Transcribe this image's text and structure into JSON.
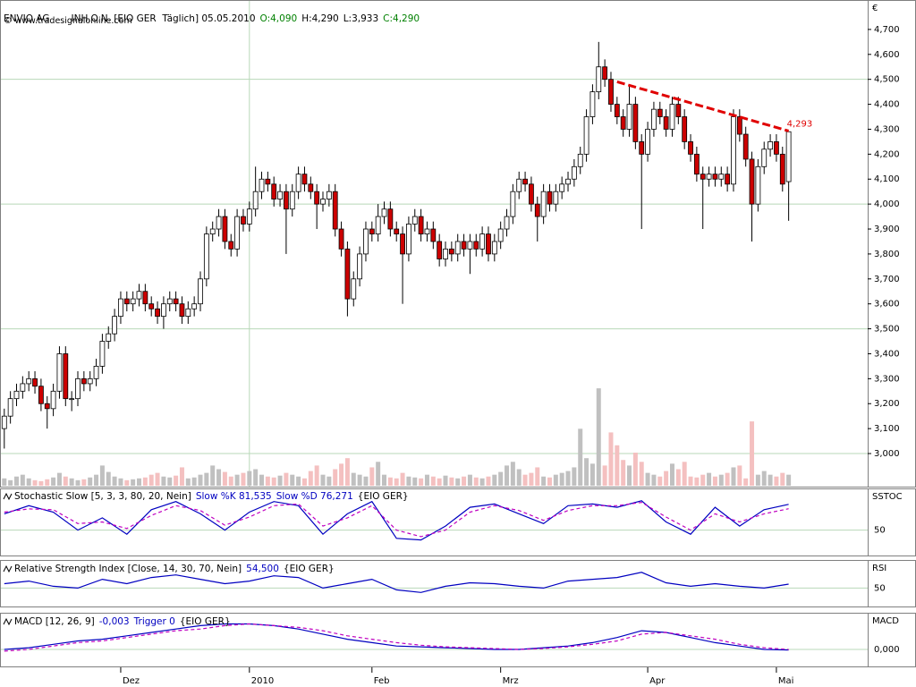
{
  "header": {
    "symbol": "ENVIO AG",
    "instrument": "INH.O.N. [EIO GER  Täglich] 05.05.2010",
    "open": "O:4,090",
    "high": "H:4,290",
    "low": "L:3,933",
    "close": "C:4,290",
    "copyright": "© www.tradesignalonline.com"
  },
  "chart_data": [
    {
      "type": "candlestick",
      "axis_label": "€",
      "xlim": [
        -0.7,
        140.9
      ],
      "xticks": [
        {
          "value": 19,
          "label": "Dez"
        },
        {
          "value": 40,
          "label": "2010"
        },
        {
          "value": 60,
          "label": "Feb"
        },
        {
          "value": 81,
          "label": "Mrz"
        },
        {
          "value": 105,
          "label": "Apr"
        },
        {
          "value": 126,
          "label": "Mai"
        }
      ],
      "xgrid": [
        40
      ],
      "ylim": [
        2.871,
        4.818
      ],
      "yticks": [
        {
          "value": 3.0,
          "label": "3,000"
        },
        {
          "value": 3.1,
          "label": "3,100"
        },
        {
          "value": 3.2,
          "label": "3,200"
        },
        {
          "value": 3.3,
          "label": "3,300"
        },
        {
          "value": 3.4,
          "label": "3,400"
        },
        {
          "value": 3.5,
          "label": "3,500"
        },
        {
          "value": 3.6,
          "label": "3,600"
        },
        {
          "value": 3.7,
          "label": "3,700"
        },
        {
          "value": 3.8,
          "label": "3,800"
        },
        {
          "value": 3.9,
          "label": "3,900"
        },
        {
          "value": 4.0,
          "label": "4,000"
        },
        {
          "value": 4.1,
          "label": "4,100"
        },
        {
          "value": 4.2,
          "label": "4,200"
        },
        {
          "value": 4.3,
          "label": "4,300"
        },
        {
          "value": 4.4,
          "label": "4,400"
        },
        {
          "value": 4.5,
          "label": "4,500"
        },
        {
          "value": 4.6,
          "label": "4,600"
        },
        {
          "value": 4.7,
          "label": "4,700"
        }
      ],
      "ygrid": [
        3.0,
        3.5,
        4.0,
        4.5
      ],
      "up_color": "#ffffff",
      "down_color": "#cc0000",
      "open": [
        3.1,
        3.15,
        3.22,
        3.25,
        3.28,
        3.3,
        3.27,
        3.2,
        3.18,
        3.25,
        3.4,
        3.22,
        3.22,
        3.3,
        3.28,
        3.3,
        3.35,
        3.45,
        3.48,
        3.55,
        3.62,
        3.6,
        3.62,
        3.65,
        3.6,
        3.58,
        3.55,
        3.6,
        3.62,
        3.6,
        3.55,
        3.58,
        3.6,
        3.7,
        3.88,
        3.9,
        3.95,
        3.85,
        3.82,
        3.95,
        3.92,
        3.98,
        4.05,
        4.1,
        4.08,
        4.02,
        4.05,
        3.98,
        4.05,
        4.12,
        4.08,
        4.05,
        4.0,
        4.02,
        4.05,
        3.9,
        3.82,
        3.62,
        3.7,
        3.8,
        3.9,
        3.88,
        3.95,
        3.98,
        3.9,
        3.88,
        3.8,
        3.92,
        3.95,
        3.88,
        3.9,
        3.85,
        3.78,
        3.82,
        3.8,
        3.85,
        3.82,
        3.85,
        3.82,
        3.88,
        3.8,
        3.85,
        3.9,
        3.95,
        4.05,
        4.1,
        4.08,
        4.0,
        3.95,
        4.05,
        4.0,
        4.05,
        4.08,
        4.1,
        4.15,
        4.2,
        4.35,
        4.45,
        4.55,
        4.5,
        4.4,
        4.35,
        4.3,
        4.4,
        4.25,
        4.2,
        4.3,
        4.38,
        4.35,
        4.3,
        4.4,
        4.35,
        4.25,
        4.2,
        4.12,
        4.1,
        4.12,
        4.1,
        4.12,
        4.08,
        4.35,
        4.28,
        4.18,
        4.0,
        4.15,
        4.22,
        4.25,
        4.2,
        4.09
      ],
      "high": [
        3.18,
        3.25,
        3.28,
        3.31,
        3.33,
        3.33,
        3.3,
        3.23,
        3.28,
        3.43,
        3.43,
        3.25,
        3.33,
        3.33,
        3.33,
        3.38,
        3.48,
        3.51,
        3.58,
        3.65,
        3.65,
        3.65,
        3.68,
        3.68,
        3.63,
        3.61,
        3.63,
        3.65,
        3.65,
        3.63,
        3.61,
        3.63,
        3.73,
        3.91,
        3.93,
        3.98,
        3.98,
        3.88,
        3.98,
        3.98,
        4.01,
        4.15,
        4.13,
        4.13,
        4.11,
        4.08,
        4.08,
        4.08,
        4.15,
        4.15,
        4.11,
        4.08,
        4.05,
        4.08,
        4.08,
        3.93,
        3.85,
        3.73,
        3.83,
        3.93,
        3.93,
        4.0,
        4.01,
        4.01,
        3.93,
        3.91,
        3.95,
        3.98,
        3.98,
        3.93,
        3.93,
        3.88,
        3.85,
        3.85,
        3.88,
        3.88,
        3.88,
        3.88,
        3.91,
        3.91,
        3.88,
        3.93,
        3.98,
        4.08,
        4.13,
        4.13,
        4.11,
        4.03,
        4.08,
        4.08,
        4.08,
        4.11,
        4.13,
        4.18,
        4.23,
        4.38,
        4.48,
        4.65,
        4.58,
        4.53,
        4.43,
        4.38,
        4.48,
        4.43,
        4.28,
        4.33,
        4.41,
        4.41,
        4.38,
        4.43,
        4.43,
        4.38,
        4.28,
        4.23,
        4.15,
        4.15,
        4.15,
        4.15,
        4.15,
        4.38,
        4.38,
        4.31,
        4.21,
        4.18,
        4.25,
        4.28,
        4.28,
        4.23,
        4.29
      ],
      "low": [
        3.02,
        3.12,
        3.19,
        3.22,
        3.25,
        3.24,
        3.17,
        3.1,
        3.15,
        3.22,
        3.19,
        3.17,
        3.19,
        3.25,
        3.25,
        3.27,
        3.32,
        3.42,
        3.45,
        3.52,
        3.57,
        3.57,
        3.59,
        3.57,
        3.55,
        3.52,
        3.5,
        3.57,
        3.57,
        3.52,
        3.52,
        3.55,
        3.57,
        3.67,
        3.85,
        3.87,
        3.82,
        3.79,
        3.79,
        3.89,
        3.89,
        3.95,
        4.02,
        4.05,
        3.99,
        3.99,
        3.8,
        3.95,
        4.02,
        4.05,
        4.02,
        3.9,
        3.97,
        3.99,
        3.87,
        3.79,
        3.55,
        3.59,
        3.67,
        3.77,
        3.85,
        3.85,
        3.92,
        3.87,
        3.85,
        3.6,
        3.77,
        3.89,
        3.85,
        3.85,
        3.82,
        3.75,
        3.75,
        3.77,
        3.77,
        3.79,
        3.72,
        3.79,
        3.79,
        3.77,
        3.77,
        3.82,
        3.87,
        3.92,
        4.02,
        4.05,
        3.97,
        3.85,
        3.92,
        3.97,
        3.97,
        4.02,
        4.05,
        4.07,
        4.12,
        4.17,
        4.32,
        4.42,
        4.47,
        4.37,
        4.32,
        4.27,
        4.27,
        4.22,
        3.9,
        4.17,
        4.27,
        4.32,
        4.27,
        4.27,
        4.32,
        4.22,
        4.17,
        4.09,
        3.9,
        4.07,
        4.07,
        4.07,
        4.05,
        4.05,
        4.25,
        4.15,
        3.85,
        3.97,
        4.12,
        4.19,
        4.17,
        4.05,
        3.933
      ],
      "close": [
        3.15,
        3.22,
        3.25,
        3.28,
        3.3,
        3.27,
        3.2,
        3.18,
        3.25,
        3.4,
        3.22,
        3.22,
        3.3,
        3.28,
        3.3,
        3.35,
        3.45,
        3.48,
        3.55,
        3.62,
        3.6,
        3.62,
        3.65,
        3.6,
        3.58,
        3.55,
        3.6,
        3.62,
        3.6,
        3.55,
        3.58,
        3.6,
        3.7,
        3.88,
        3.9,
        3.95,
        3.85,
        3.82,
        3.95,
        3.92,
        3.98,
        4.05,
        4.1,
        4.08,
        4.02,
        4.05,
        3.98,
        4.05,
        4.12,
        4.08,
        4.05,
        4.0,
        4.02,
        4.05,
        3.9,
        3.82,
        3.62,
        3.7,
        3.8,
        3.9,
        3.88,
        3.95,
        3.98,
        3.9,
        3.88,
        3.8,
        3.92,
        3.95,
        3.88,
        3.9,
        3.85,
        3.78,
        3.82,
        3.8,
        3.85,
        3.82,
        3.85,
        3.82,
        3.88,
        3.8,
        3.85,
        3.9,
        3.95,
        4.05,
        4.1,
        4.08,
        4.0,
        3.95,
        4.05,
        4.0,
        4.05,
        4.08,
        4.1,
        4.15,
        4.2,
        4.35,
        4.45,
        4.55,
        4.5,
        4.4,
        4.35,
        4.3,
        4.4,
        4.25,
        4.2,
        4.3,
        4.38,
        4.35,
        4.3,
        4.4,
        4.35,
        4.25,
        4.2,
        4.12,
        4.1,
        4.12,
        4.1,
        4.12,
        4.08,
        4.35,
        4.28,
        4.18,
        4.0,
        4.15,
        4.22,
        4.25,
        4.2,
        4.08,
        4.29
      ],
      "volume": {
        "ylim": [
          0,
          110
        ],
        "up_color": "#c0c0c0",
        "down_color": "#f4c0c0",
        "values": [
          8,
          6,
          10,
          12,
          8,
          6,
          5,
          7,
          9,
          14,
          10,
          8,
          6,
          7,
          9,
          12,
          22,
          15,
          10,
          8,
          6,
          7,
          8,
          9,
          12,
          14,
          10,
          9,
          11,
          20,
          8,
          9,
          12,
          14,
          22,
          18,
          15,
          10,
          12,
          14,
          16,
          18,
          12,
          10,
          9,
          11,
          14,
          12,
          10,
          8,
          16,
          22,
          12,
          10,
          18,
          24,
          30,
          14,
          12,
          10,
          20,
          26,
          12,
          9,
          8,
          14,
          10,
          9,
          8,
          12,
          10,
          8,
          11,
          9,
          8,
          10,
          12,
          9,
          8,
          10,
          12,
          15,
          22,
          26,
          18,
          12,
          14,
          20,
          10,
          9,
          12,
          14,
          16,
          20,
          62,
          30,
          24,
          106,
          22,
          58,
          44,
          28,
          22,
          36,
          26,
          14,
          12,
          10,
          16,
          24,
          18,
          26,
          10,
          9,
          12,
          14,
          10,
          12,
          14,
          20,
          22,
          8,
          70,
          12,
          16,
          12,
          10,
          14,
          12
        ]
      },
      "trendline": {
        "color": "#e00000",
        "x": [
          100,
          128
        ],
        "values": [
          4.49,
          4.293
        ],
        "label": "4,293"
      }
    },
    {
      "type": "line",
      "title": "Stochastic Slow [5, 3, 3, 80, 20, Nein]",
      "suffix": "{EIO GER}",
      "axis_label": "SSTOC",
      "ylim": [
        20,
        100
      ],
      "yticks": [
        50
      ],
      "x": [
        0,
        4,
        8,
        12,
        16,
        20,
        24,
        28,
        32,
        36,
        40,
        44,
        48,
        52,
        56,
        60,
        64,
        68,
        72,
        76,
        80,
        84,
        88,
        92,
        96,
        100,
        104,
        108,
        112,
        116,
        120,
        124,
        128
      ],
      "series": [
        {
          "name": "Slow %K 81,535",
          "color": "#0000c0",
          "dash": false,
          "values": [
            70,
            80,
            72,
            50,
            65,
            45,
            75,
            85,
            70,
            50,
            72,
            85,
            80,
            45,
            70,
            85,
            40,
            38,
            55,
            78,
            82,
            70,
            58,
            80,
            82,
            78,
            86,
            60,
            45,
            78,
            55,
            75,
            81.535
          ]
        },
        {
          "name": "Slow %D 76,271",
          "color": "#c000c0",
          "dash": true,
          "values": [
            72,
            76,
            75,
            58,
            60,
            52,
            68,
            80,
            74,
            56,
            66,
            80,
            82,
            55,
            65,
            80,
            50,
            42,
            50,
            72,
            80,
            74,
            62,
            74,
            80,
            80,
            84,
            66,
            50,
            70,
            60,
            70,
            76.271
          ]
        }
      ]
    },
    {
      "type": "line",
      "title": "Relative Strength Index [Close, 14, 30, 70, Nein]",
      "suffix": "{EIO GER}",
      "axis_label": "RSI",
      "ylim": [
        30,
        80
      ],
      "yticks": [
        50
      ],
      "x": [
        0,
        4,
        8,
        12,
        16,
        20,
        24,
        28,
        32,
        36,
        40,
        44,
        48,
        52,
        56,
        60,
        64,
        68,
        72,
        76,
        80,
        84,
        88,
        92,
        96,
        100,
        104,
        108,
        112,
        116,
        120,
        124,
        128
      ],
      "series": [
        {
          "name": "54,500",
          "color": "#0000c0",
          "dash": false,
          "values": [
            55,
            58,
            52,
            50,
            60,
            55,
            62,
            65,
            60,
            55,
            58,
            64,
            62,
            50,
            55,
            60,
            48,
            45,
            52,
            56,
            55,
            52,
            50,
            58,
            60,
            62,
            68,
            56,
            52,
            55,
            52,
            50,
            54.5
          ]
        }
      ]
    },
    {
      "type": "line",
      "title": "MACD [12, 26, 9]",
      "suffix": "{EIO GER}",
      "axis_label": "MACD",
      "ylim": [
        -0.1,
        0.2
      ],
      "yticks": [
        {
          "value": 0,
          "label": "0,000"
        }
      ],
      "x": [
        0,
        4,
        8,
        12,
        16,
        20,
        24,
        28,
        32,
        36,
        40,
        44,
        48,
        52,
        56,
        60,
        64,
        68,
        72,
        76,
        80,
        84,
        88,
        92,
        96,
        100,
        104,
        108,
        112,
        116,
        120,
        124,
        128
      ],
      "series": [
        {
          "name": "-0,003",
          "color": "#0000c0",
          "dash": false,
          "values": [
            0,
            0.01,
            0.03,
            0.05,
            0.06,
            0.08,
            0.1,
            0.12,
            0.14,
            0.15,
            0.15,
            0.14,
            0.12,
            0.09,
            0.06,
            0.04,
            0.02,
            0.015,
            0.01,
            0.005,
            0.0,
            0.0,
            0.01,
            0.02,
            0.04,
            0.07,
            0.11,
            0.1,
            0.07,
            0.04,
            0.02,
            0.0,
            -0.003
          ]
        },
        {
          "name": "Trigger 0",
          "color": "#c000c0",
          "dash": true,
          "values": [
            -0.01,
            0.0,
            0.02,
            0.04,
            0.05,
            0.07,
            0.09,
            0.11,
            0.12,
            0.14,
            0.15,
            0.14,
            0.13,
            0.11,
            0.08,
            0.06,
            0.04,
            0.025,
            0.015,
            0.01,
            0.005,
            0.0,
            0.005,
            0.015,
            0.03,
            0.05,
            0.09,
            0.1,
            0.08,
            0.06,
            0.03,
            0.01,
            0
          ]
        }
      ]
    }
  ]
}
